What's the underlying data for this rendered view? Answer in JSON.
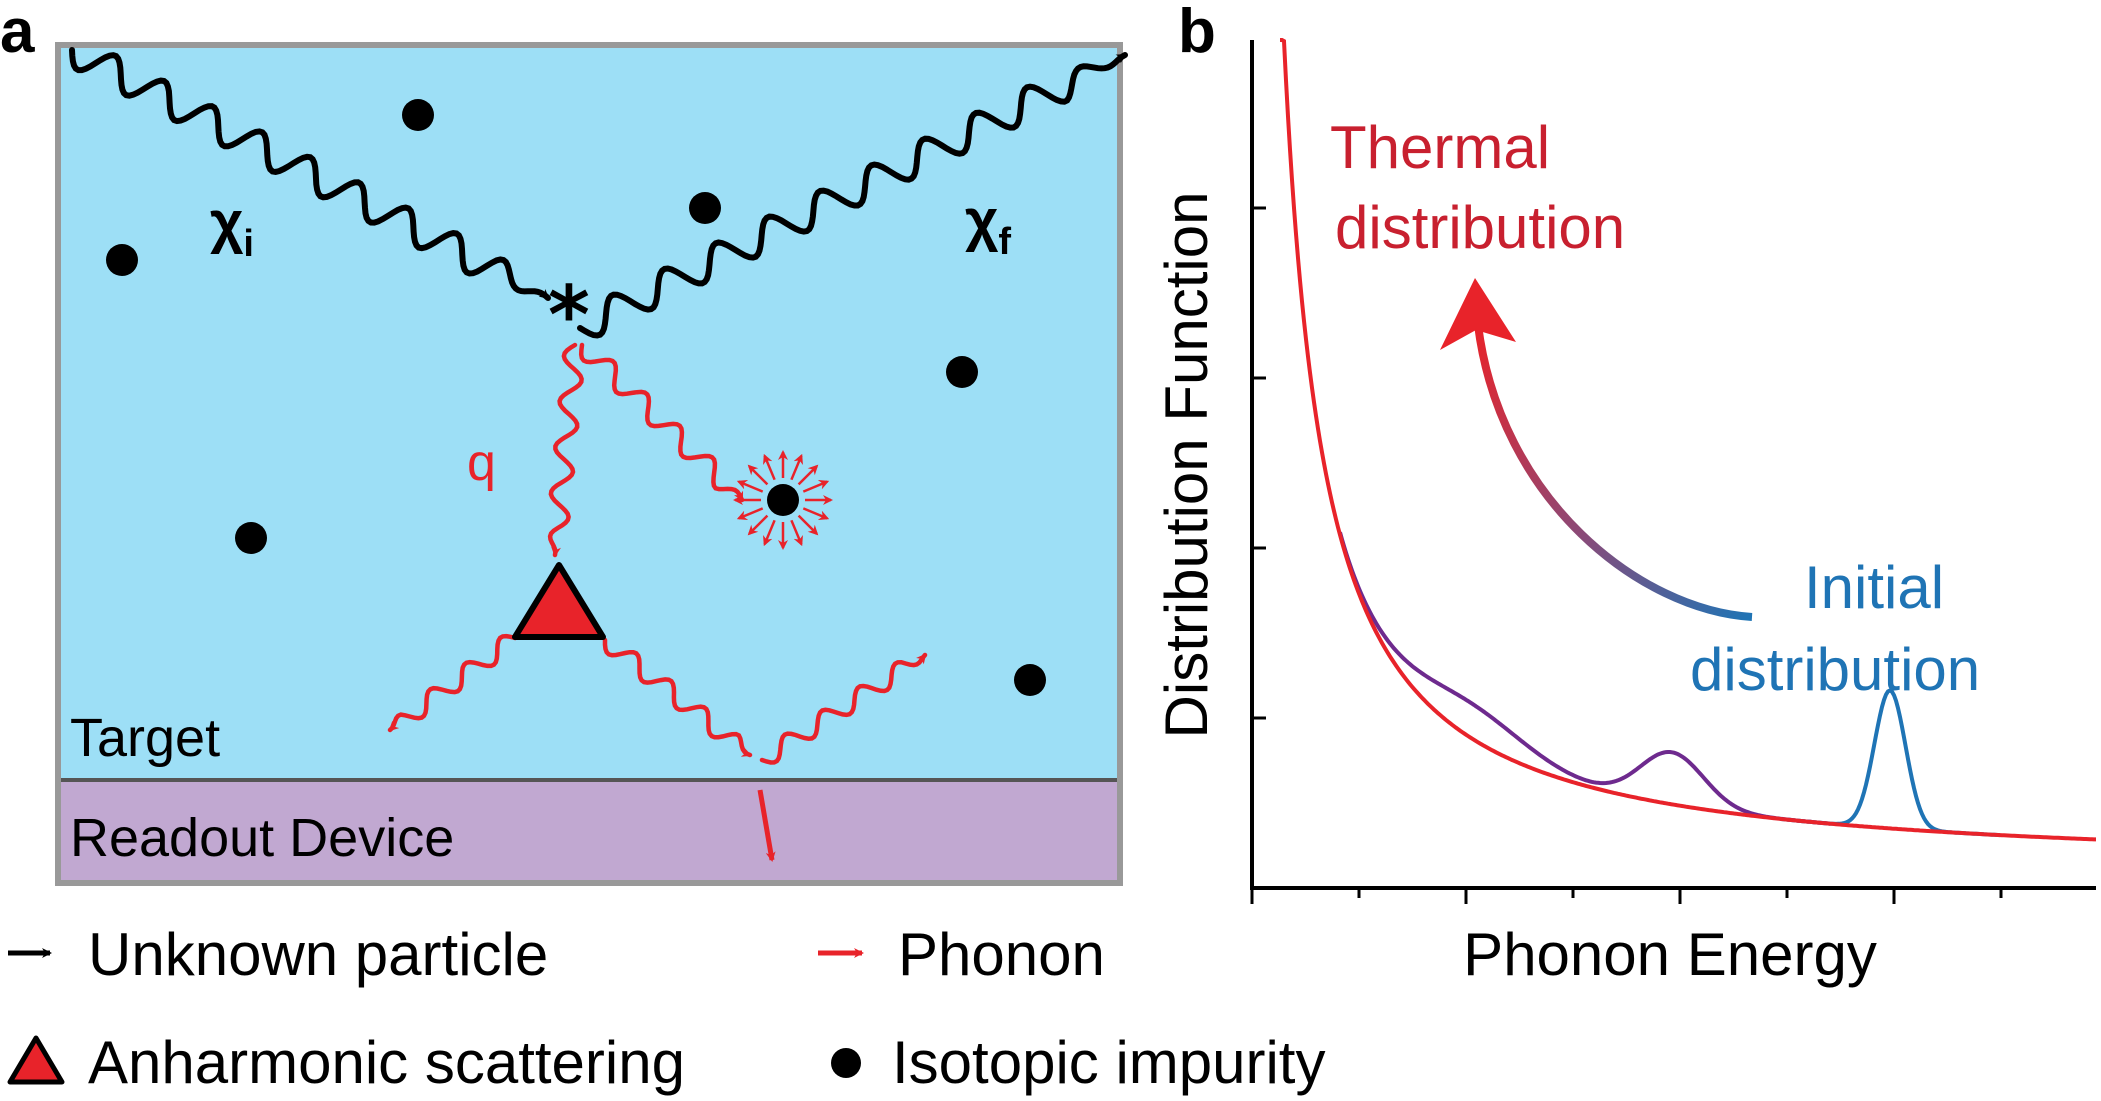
{
  "panel_a": {
    "label": "a",
    "target_label": "Target",
    "readout_label": "Readout Device",
    "chi_i": {
      "symbol": "χ",
      "sub": "i"
    },
    "chi_f": {
      "symbol": "χ",
      "sub": "f"
    },
    "phonon_momentum_label": "q",
    "colors": {
      "target": "#9ddff6",
      "readout": "#c1a8d1",
      "frame": "#999999",
      "phonon": "#e8232a",
      "particle": "#000000"
    }
  },
  "legend": {
    "unknown_particle": "Unknown particle",
    "phonon": "Phonon",
    "anharmonic": "Anharmonic scattering",
    "isotopic": "Isotopic impurity"
  },
  "panel_b": {
    "label": "b",
    "ylabel": "Distribution Function",
    "xlabel": "Phonon Energy",
    "thermal_line1": "Thermal",
    "thermal_line2": "distribution",
    "initial_line1": "Initial",
    "initial_line2": "distribution",
    "colors": {
      "thermal": "#c8202f",
      "initial": "#1f74b5",
      "intermediate": "#6e2a8e"
    }
  },
  "chart_data": {
    "type": "line",
    "xlabel": "Phonon Energy",
    "ylabel": "Distribution Function",
    "x_ticks_count": 8,
    "y_ticks_count": 5,
    "series": [
      {
        "name": "Thermal distribution",
        "peaks": []
      },
      {
        "name": "Initial distribution",
        "peaks": [
          {
            "x": 6.2,
            "height": 0.16
          }
        ]
      }
    ]
  }
}
